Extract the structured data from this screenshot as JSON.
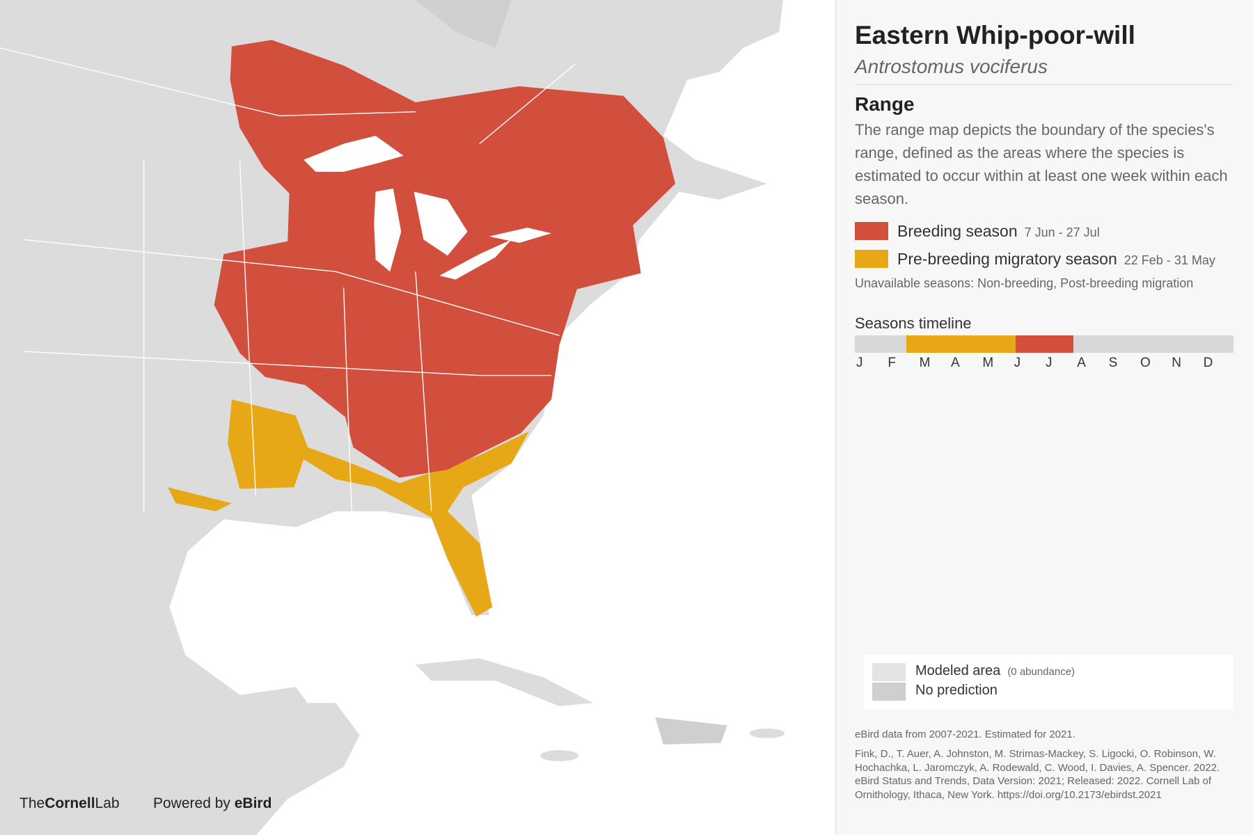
{
  "header": {
    "title": "Eastern Whip-poor-will",
    "scientific_name": "Antrostomus vociferus"
  },
  "range": {
    "heading": "Range",
    "description": "The range map depicts the boundary of the species's range, defined as the areas where the species is estimated to occur within at least one week within each season.",
    "legend": [
      {
        "label": "Breeding season",
        "dates": "7 Jun - 27 Jul"
      },
      {
        "label": "Pre-breeding migratory season",
        "dates": "22 Feb - 31 May"
      }
    ],
    "unavailable": "Unavailable seasons: Non-breeding, Post-breeding migration"
  },
  "timeline": {
    "title": "Seasons timeline",
    "months": [
      "J",
      "F",
      "M",
      "A",
      "M",
      "J",
      "J",
      "A",
      "S",
      "O",
      "N",
      "D"
    ]
  },
  "map_legend": [
    {
      "label": "Modeled area",
      "note": "(0 abundance)"
    },
    {
      "label": "No prediction"
    }
  ],
  "footer": {
    "data_note": "eBird data from 2007-2021. Estimated for 2021.",
    "citation": "Fink, D., T. Auer, A. Johnston, M. Strimas-Mackey, S. Ligocki, O. Robinson, W. Hochachka, L. Jaromczyk, A. Rodewald, C. Wood, I. Davies, A. Spencer. 2022. eBird Status and Trends, Data Version: 2021; Released: 2022. Cornell Lab of Ornithology, Ithaca, New York. https://doi.org/10.2173/ebirdst.2021"
  },
  "logos": {
    "cornell_the": "The",
    "cornell_name": "Cornell",
    "cornell_lab": "Lab",
    "powered_by": "Powered by",
    "ebird": "eBird"
  }
}
